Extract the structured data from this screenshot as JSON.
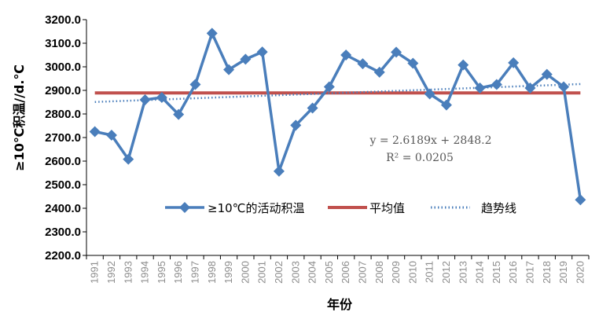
{
  "chart_data": {
    "type": "line",
    "xlabel": "年份",
    "ylabel": "≥10℃积温//d.℃",
    "ylim": [
      2200,
      3200
    ],
    "ytick_step": 100,
    "ytick_labels": [
      "2200.0",
      "2300.0",
      "2400.0",
      "2500.0",
      "2600.0",
      "2700.0",
      "2800.0",
      "2900.0",
      "3000.0",
      "3100.0",
      "3200.0"
    ],
    "x": [
      "1991",
      "1992",
      "1993",
      "1994",
      "1995",
      "1996",
      "1997",
      "1998",
      "1999",
      "2000",
      "2001",
      "2002",
      "2003",
      "2004",
      "2005",
      "2006",
      "2007",
      "2008",
      "2009",
      "2010",
      "2011",
      "2012",
      "2013",
      "2014",
      "2015",
      "2016",
      "2017",
      "2018",
      "2019",
      "2020"
    ],
    "series": [
      {
        "name": "≥10℃的活动积温",
        "color": "#4a7ebb",
        "marker": "diamond",
        "values": [
          2725,
          2710,
          2608,
          2860,
          2870,
          2798,
          2925,
          3142,
          2988,
          3032,
          3063,
          2557,
          2752,
          2825,
          2915,
          3050,
          3013,
          2977,
          3062,
          3015,
          2885,
          2838,
          3008,
          2910,
          2925,
          3017,
          2910,
          2968,
          2915,
          2436
        ]
      },
      {
        "name": "平均值",
        "color": "#c0504d",
        "values": [
          2889,
          2889,
          2889,
          2889,
          2889,
          2889,
          2889,
          2889,
          2889,
          2889,
          2889,
          2889,
          2889,
          2889,
          2889,
          2889,
          2889,
          2889,
          2889,
          2889,
          2889,
          2889,
          2889,
          2889,
          2889,
          2889,
          2889,
          2889,
          2889,
          2889
        ]
      },
      {
        "name": "趋势线",
        "color": "#4a7ebb",
        "style": "dotted",
        "slope": 2.6189,
        "intercept": 2848.2
      }
    ],
    "annotations": {
      "equation": "y = 2.6189x + 2848.2",
      "r2": "R² = 0.0205"
    },
    "grid": false,
    "legend_position": "inside-bottom"
  }
}
